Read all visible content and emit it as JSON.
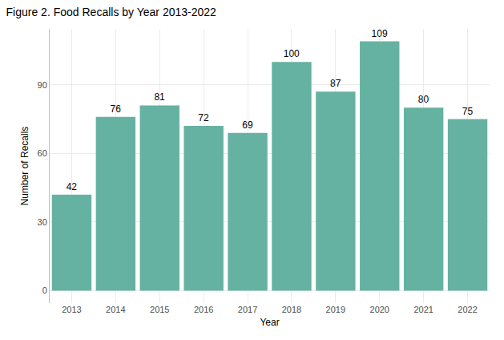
{
  "chart_data": {
    "type": "bar",
    "title": "Figure 2. Food Recalls by Year 2013-2022",
    "x_label": "Year",
    "y_label": "Number of Recalls",
    "categories": [
      "2013",
      "2014",
      "2015",
      "2016",
      "2017",
      "2018",
      "2019",
      "2020",
      "2021",
      "2022"
    ],
    "values": [
      42,
      76,
      81,
      72,
      69,
      100,
      87,
      109,
      80,
      75
    ],
    "color": "#66b2a2",
    "ylim": [
      -5.45,
      114.45
    ],
    "yticks": [
      0,
      30,
      60,
      90
    ],
    "grid": true,
    "data_labels": true
  }
}
